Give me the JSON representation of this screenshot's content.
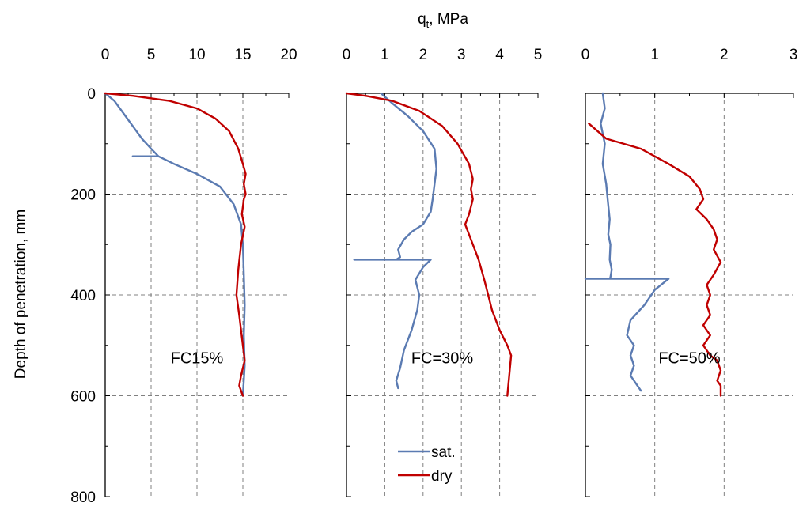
{
  "figure": {
    "xlabel": "qt, MPa",
    "xlabel_main": "q",
    "xlabel_sub": "t",
    "xlabel_unit": ", MPa",
    "ylabel": "Depth of penetration, mm"
  },
  "colors": {
    "sat": "#5b7bb2",
    "dry": "#c00000",
    "grid": "#808080",
    "axis": "#000000"
  },
  "legend": [
    {
      "key": "sat",
      "label": "sat."
    },
    {
      "key": "dry",
      "label": "dry"
    }
  ],
  "chart_data": [
    {
      "type": "line",
      "panel_label": "FC15%",
      "xlim": [
        0,
        20
      ],
      "ylim": [
        0,
        800
      ],
      "y_inverted": true,
      "xticks": [
        0,
        5,
        10,
        15,
        20
      ],
      "xtick_labels": [
        "0",
        "5",
        "10",
        "15",
        "20"
      ],
      "yticks": [
        0,
        200,
        400,
        600,
        800
      ],
      "ytick_labels": [
        "0",
        "200",
        "400",
        "600",
        "800"
      ],
      "grid": true,
      "series": [
        {
          "name": "sat.",
          "key": "sat",
          "x": [
            0,
            1,
            2,
            3,
            4,
            5,
            5.8,
            3,
            5.8,
            7.5,
            10,
            12.5,
            14,
            14.8,
            15,
            15.1,
            15.2,
            15.1,
            15.2,
            15
          ],
          "y": [
            0,
            15,
            40,
            65,
            90,
            110,
            125,
            125,
            125,
            140,
            160,
            185,
            220,
            260,
            300,
            360,
            420,
            480,
            540,
            600
          ]
        },
        {
          "name": "dry",
          "key": "dry",
          "x": [
            0,
            3,
            7,
            10,
            12,
            13.5,
            14.5,
            15,
            15.3,
            15.1,
            15.3,
            15.1,
            14.9,
            15.2,
            14.8,
            14.5,
            14.3,
            14.6,
            15,
            15.2,
            14.8,
            14.6,
            15
          ],
          "y": [
            0,
            5,
            15,
            30,
            50,
            75,
            110,
            140,
            160,
            180,
            200,
            210,
            240,
            265,
            300,
            350,
            400,
            440,
            500,
            530,
            560,
            580,
            600
          ]
        }
      ]
    },
    {
      "type": "line",
      "panel_label": "FC=30%",
      "xlim": [
        0,
        5
      ],
      "ylim": [
        0,
        800
      ],
      "y_inverted": true,
      "xticks": [
        0,
        1,
        2,
        3,
        4,
        5
      ],
      "xtick_labels": [
        "0",
        "1",
        "2",
        "3",
        "4",
        "5"
      ],
      "yticks": [
        0,
        200,
        400,
        600,
        800
      ],
      "ytick_labels": [],
      "grid": true,
      "series": [
        {
          "name": "sat.",
          "key": "sat",
          "x": [
            0.9,
            1.2,
            1.6,
            2.0,
            2.3,
            2.35,
            2.3,
            2.25,
            2.2,
            2.0,
            1.7,
            1.5,
            1.35,
            1.4,
            1.3,
            0.2,
            2.2,
            2.0,
            1.8,
            1.9,
            1.85,
            1.7,
            1.5,
            1.4,
            1.3,
            1.35
          ],
          "y": [
            0,
            20,
            45,
            75,
            110,
            150,
            180,
            210,
            235,
            260,
            275,
            290,
            310,
            325,
            330,
            330,
            330,
            345,
            370,
            400,
            430,
            470,
            510,
            545,
            570,
            585
          ]
        },
        {
          "name": "dry",
          "key": "dry",
          "x": [
            0,
            0.5,
            1.2,
            1.9,
            2.5,
            2.9,
            3.2,
            3.3,
            3.25,
            3.3,
            3.2,
            3.1,
            3.2,
            3.45,
            3.6,
            3.7,
            3.8,
            4.0,
            4.2,
            4.3,
            4.25,
            4.2
          ],
          "y": [
            0,
            5,
            15,
            35,
            65,
            100,
            140,
            170,
            190,
            210,
            240,
            260,
            280,
            330,
            370,
            400,
            430,
            470,
            500,
            520,
            560,
            600
          ]
        }
      ]
    },
    {
      "type": "line",
      "panel_label": "FC=50%",
      "xlim": [
        0,
        3
      ],
      "ylim": [
        0,
        800
      ],
      "y_inverted": true,
      "xticks": [
        0,
        1,
        2,
        3
      ],
      "xtick_labels": [
        "0",
        "1",
        "2",
        "3"
      ],
      "yticks": [
        0,
        200,
        400,
        600,
        800
      ],
      "ytick_labels": [],
      "grid": true,
      "series": [
        {
          "name": "sat.",
          "key": "sat",
          "x": [
            0.25,
            0.28,
            0.22,
            0.28,
            0.25,
            0.3,
            0.32,
            0.35,
            0.33,
            0.36,
            0.35,
            0.38,
            0.36,
            0.35,
            0.0,
            1.2,
            1.0,
            0.85,
            0.65,
            0.6,
            0.7,
            0.65,
            0.7,
            0.65,
            0.75,
            0.8
          ],
          "y": [
            0,
            30,
            60,
            100,
            140,
            180,
            210,
            250,
            280,
            300,
            330,
            350,
            365,
            368,
            368,
            368,
            390,
            420,
            450,
            480,
            500,
            520,
            540,
            560,
            580,
            590
          ]
        },
        {
          "name": "dry",
          "key": "dry",
          "x": [
            0.05,
            0.3,
            0.8,
            1.2,
            1.5,
            1.65,
            1.7,
            1.6,
            1.75,
            1.85,
            1.9,
            1.85,
            1.95,
            1.85,
            1.75,
            1.8,
            1.75,
            1.8,
            1.7,
            1.8,
            1.7,
            1.8,
            1.9,
            1.95,
            1.9,
            1.95,
            1.95
          ],
          "y": [
            60,
            90,
            110,
            140,
            165,
            190,
            210,
            230,
            250,
            270,
            290,
            310,
            335,
            360,
            380,
            400,
            420,
            440,
            460,
            480,
            500,
            520,
            530,
            550,
            570,
            580,
            600
          ]
        }
      ]
    }
  ]
}
